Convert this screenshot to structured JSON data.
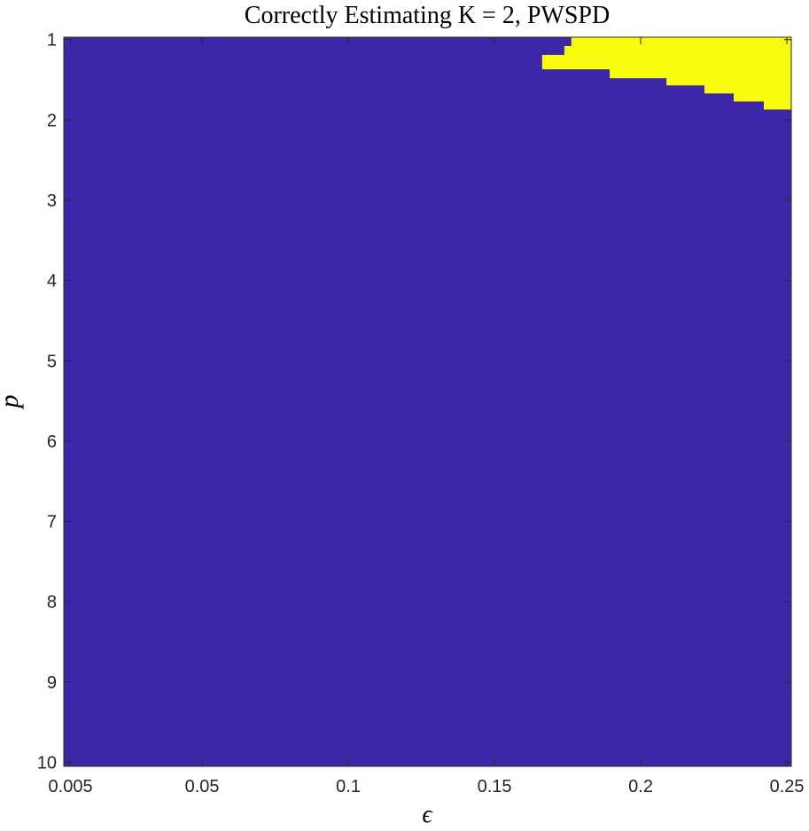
{
  "chart_data": {
    "type": "heatmap",
    "title": "Correctly Estimating K = 2, PWSPD",
    "xlabel": "ϵ",
    "ylabel": "p",
    "xlim": [
      0.0027,
      0.2515
    ],
    "ylim": [
      0.97,
      10.05
    ],
    "y_reversed": true,
    "xticks": [
      0.005,
      0.05,
      0.1,
      0.15,
      0.2,
      0.25
    ],
    "yticks": [
      1,
      2,
      3,
      4,
      5,
      6,
      7,
      8,
      9,
      10
    ],
    "background_color": "#3e26a8",
    "region_color": "#f9fb0e",
    "regions": [
      {
        "x": [
          0.1663,
          0.1739
        ],
        "y": [
          1.19,
          1.37
        ]
      },
      {
        "x": [
          0.1739,
          0.1763
        ],
        "y": [
          1.08,
          1.37
        ]
      },
      {
        "x": [
          0.1763,
          0.1894
        ],
        "y": [
          0.97,
          1.37
        ]
      },
      {
        "x": [
          0.1894,
          0.2088
        ],
        "y": [
          0.97,
          1.48
        ]
      },
      {
        "x": [
          0.2088,
          0.2218
        ],
        "y": [
          0.97,
          1.57
        ]
      },
      {
        "x": [
          0.2218,
          0.2318
        ],
        "y": [
          0.97,
          1.67
        ]
      },
      {
        "x": [
          0.2318,
          0.2421
        ],
        "y": [
          0.97,
          1.77
        ]
      },
      {
        "x": [
          0.2421,
          0.2515
        ],
        "y": [
          0.97,
          1.87
        ]
      }
    ]
  }
}
